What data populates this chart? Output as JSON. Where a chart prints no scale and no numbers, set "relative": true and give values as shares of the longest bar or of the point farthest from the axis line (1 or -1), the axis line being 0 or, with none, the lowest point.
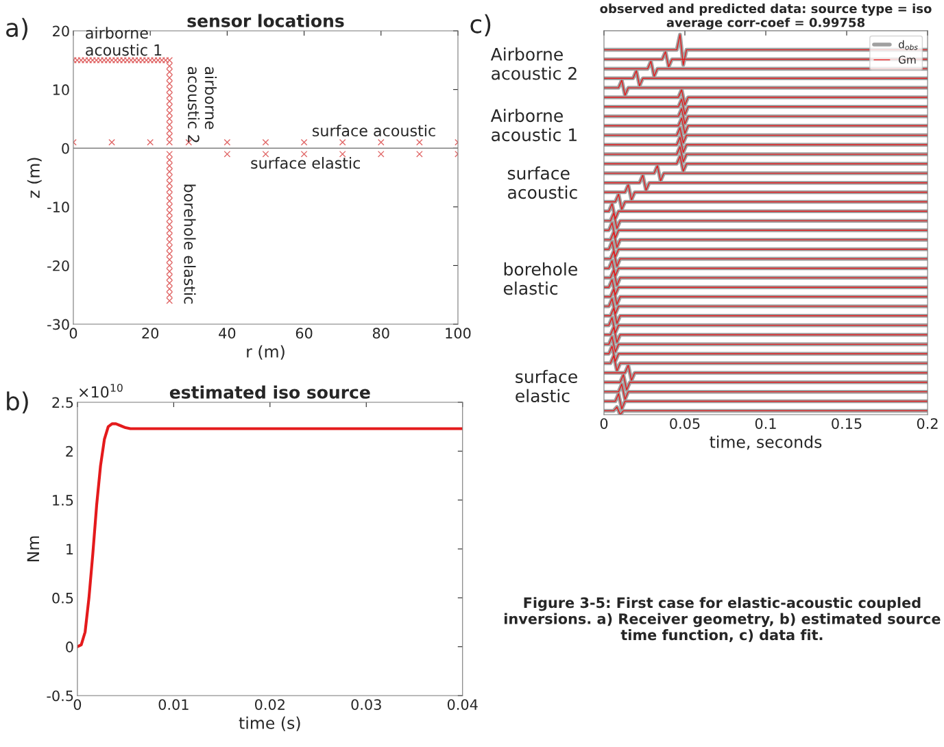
{
  "chart_data": [
    {
      "type": "scatter",
      "title": "sensor locations",
      "xlabel": "r (m)",
      "ylabel": "z (m)",
      "xlim": [
        0,
        100
      ],
      "ylim": [
        -30,
        20
      ],
      "xticks": [
        0,
        20,
        40,
        60,
        80,
        100
      ],
      "yticks": [
        -30,
        -20,
        -10,
        0,
        10,
        20
      ],
      "grid": false,
      "marker": "cross",
      "ref_lines": [
        {
          "axis": "y",
          "value": 0,
          "color": "#808080"
        }
      ],
      "series": [
        {
          "color": "#e06666",
          "x": [
            0,
            1,
            2,
            3,
            4,
            5,
            6,
            7,
            8,
            9,
            10,
            11,
            12,
            13,
            14,
            15,
            16,
            17,
            18,
            19,
            20,
            21,
            22,
            23,
            24,
            25,
            25,
            25,
            25,
            25,
            25,
            25,
            25,
            25,
            25,
            25,
            25,
            25,
            25,
            25,
            0,
            10,
            20,
            30,
            40,
            50,
            60,
            70,
            80,
            90,
            100,
            40,
            50,
            60,
            70,
            80,
            90,
            100,
            25,
            25,
            25,
            25,
            25,
            25,
            25,
            25,
            25,
            25,
            25,
            25,
            25,
            25,
            25,
            25,
            25,
            25,
            25,
            25,
            25,
            25,
            25,
            25,
            25,
            25
          ],
          "values": [
            15,
            15,
            15,
            15,
            15,
            15,
            15,
            15,
            15,
            15,
            15,
            15,
            15,
            15,
            15,
            15,
            15,
            15,
            15,
            15,
            15,
            15,
            15,
            15,
            15,
            15,
            14,
            13,
            12,
            11,
            10,
            9,
            8,
            7,
            6,
            5,
            4,
            3,
            2,
            1,
            1,
            1,
            1,
            1,
            1,
            1,
            1,
            1,
            1,
            1,
            1,
            -1,
            -1,
            -1,
            -1,
            -1,
            -1,
            -1,
            -1,
            -2,
            -3,
            -4,
            -5,
            -6,
            -7,
            -8,
            -9,
            -10,
            -11,
            -12,
            -13,
            -14,
            -15,
            -16,
            -17,
            -18,
            -19,
            -20,
            -21,
            -22,
            -23,
            -24,
            -25,
            -26
          ]
        }
      ],
      "annotations": [
        "airborne\nacoustic 1",
        "airborne\nacoustic 2",
        "surface acoustic",
        "surface elastic",
        "borehole elastic",
        "a)"
      ]
    },
    {
      "type": "line",
      "title": "estimated iso source",
      "xlabel": "time (s)",
      "ylabel": "Nm",
      "xlim": [
        0,
        0.04
      ],
      "ylim": [
        -0.5,
        2.5
      ],
      "xticks": [
        0,
        0.01,
        0.02,
        0.03,
        0.04
      ],
      "yticks": [
        -0.5,
        0,
        0.5,
        1,
        1.5,
        2,
        2.5
      ],
      "grid": false,
      "series": [
        {
          "color": "#e41a1c",
          "x": [
            0,
            0.0004,
            0.0008,
            0.0012,
            0.0016,
            0.002,
            0.0024,
            0.0028,
            0.0032,
            0.0036,
            0.004,
            0.0045,
            0.005,
            0.0055,
            0.006,
            0.01,
            0.02,
            0.03,
            0.04
          ],
          "values": [
            0,
            0.02,
            0.15,
            0.5,
            0.95,
            1.45,
            1.85,
            2.12,
            2.25,
            2.28,
            2.28,
            2.26,
            2.24,
            2.23,
            2.23,
            2.23,
            2.23,
            2.23,
            2.23
          ]
        }
      ],
      "annotations": [
        "×10$^{10}$",
        "b)"
      ]
    },
    {
      "type": "line",
      "title": "observed and predicted data: source type = iso",
      "subtitle": "average corr-coef = 0.99758",
      "xlabel": "time, seconds",
      "xlim": [
        0,
        0.2
      ],
      "xticks": [
        0,
        0.05,
        0.1,
        0.15,
        0.2
      ],
      "relative": true,
      "tick_labels": "x",
      "grid": false,
      "legend": "top right",
      "series": [
        {
          "name": "d$_{obs}$",
          "color": "#a0a0a0",
          "x": [
            0,
            0.045,
            0.047,
            0.049,
            0.051,
            0.2
          ],
          "values": [
            0.96,
            0.96,
            1.0,
            0.92,
            0.96,
            0.96
          ]
        },
        {
          "color": "#a0a0a0",
          "x": [
            0,
            0.036,
            0.038,
            0.04,
            0.042,
            0.2
          ],
          "values": [
            0.935,
            0.935,
            0.955,
            0.915,
            0.935,
            0.935
          ]
        },
        {
          "color": "#a0a0a0",
          "x": [
            0,
            0.027,
            0.029,
            0.031,
            0.033,
            0.2
          ],
          "values": [
            0.91,
            0.91,
            0.93,
            0.89,
            0.91,
            0.91
          ]
        },
        {
          "color": "#a0a0a0",
          "x": [
            0,
            0.018,
            0.02,
            0.022,
            0.024,
            0.2
          ],
          "values": [
            0.885,
            0.885,
            0.905,
            0.865,
            0.885,
            0.885
          ]
        },
        {
          "color": "#a0a0a0",
          "x": [
            0,
            0.009,
            0.011,
            0.013,
            0.015,
            0.2
          ],
          "values": [
            0.86,
            0.86,
            0.88,
            0.84,
            0.86,
            0.86
          ]
        },
        {
          "color": "#a0a0a0",
          "x": [
            0,
            0.046,
            0.048,
            0.05,
            0.052,
            0.2
          ],
          "values": [
            0.835,
            0.835,
            0.855,
            0.815,
            0.835,
            0.835
          ]
        },
        {
          "color": "#a0a0a0",
          "x": [
            0,
            0.046,
            0.048,
            0.05,
            0.052,
            0.2
          ],
          "values": [
            0.81,
            0.81,
            0.83,
            0.79,
            0.81,
            0.81
          ]
        },
        {
          "color": "#a0a0a0",
          "x": [
            0,
            0.046,
            0.048,
            0.05,
            0.052,
            0.2
          ],
          "values": [
            0.785,
            0.785,
            0.805,
            0.765,
            0.785,
            0.785
          ]
        },
        {
          "color": "#a0a0a0",
          "x": [
            0,
            0.046,
            0.048,
            0.05,
            0.052,
            0.2
          ],
          "values": [
            0.76,
            0.76,
            0.78,
            0.74,
            0.76,
            0.76
          ]
        },
        {
          "color": "#a0a0a0",
          "x": [
            0,
            0.045,
            0.047,
            0.049,
            0.051,
            0.2
          ],
          "values": [
            0.735,
            0.735,
            0.755,
            0.715,
            0.735,
            0.735
          ]
        },
        {
          "color": "#a0a0a0",
          "x": [
            0,
            0.045,
            0.047,
            0.049,
            0.051,
            0.2
          ],
          "values": [
            0.71,
            0.71,
            0.73,
            0.69,
            0.71,
            0.71
          ]
        },
        {
          "color": "#a0a0a0",
          "x": [
            0,
            0.045,
            0.047,
            0.049,
            0.051,
            0.2
          ],
          "values": [
            0.685,
            0.685,
            0.705,
            0.665,
            0.685,
            0.685
          ]
        },
        {
          "color": "#a0a0a0",
          "x": [
            0,
            0.045,
            0.047,
            0.049,
            0.051,
            0.2
          ],
          "values": [
            0.66,
            0.66,
            0.68,
            0.64,
            0.66,
            0.66
          ]
        },
        {
          "color": "#a0a0a0",
          "x": [
            0,
            0.031,
            0.033,
            0.035,
            0.037,
            0.2
          ],
          "values": [
            0.635,
            0.635,
            0.655,
            0.615,
            0.635,
            0.635
          ]
        },
        {
          "color": "#a0a0a0",
          "x": [
            0,
            0.022,
            0.024,
            0.026,
            0.028,
            0.2
          ],
          "values": [
            0.61,
            0.61,
            0.63,
            0.59,
            0.61,
            0.61
          ]
        },
        {
          "color": "#a0a0a0",
          "x": [
            0,
            0.013,
            0.015,
            0.017,
            0.019,
            0.2
          ],
          "values": [
            0.585,
            0.585,
            0.605,
            0.565,
            0.585,
            0.585
          ]
        },
        {
          "color": "#a0a0a0",
          "x": [
            0,
            0.007,
            0.009,
            0.011,
            0.013,
            0.2
          ],
          "values": [
            0.56,
            0.56,
            0.58,
            0.54,
            0.56,
            0.56
          ]
        },
        {
          "color": "#a0a0a0",
          "x": [
            0,
            0.003,
            0.005,
            0.007,
            0.009,
            0.2
          ],
          "values": [
            0.535,
            0.535,
            0.555,
            0.515,
            0.535,
            0.535
          ]
        },
        {
          "color": "#a0a0a0",
          "x": [
            0,
            0.004,
            0.006,
            0.008,
            0.01,
            0.2
          ],
          "values": [
            0.51,
            0.51,
            0.53,
            0.49,
            0.51,
            0.51
          ]
        },
        {
          "color": "#a0a0a0",
          "x": [
            0,
            0.003,
            0.005,
            0.007,
            0.009,
            0.2
          ],
          "values": [
            0.485,
            0.485,
            0.505,
            0.465,
            0.485,
            0.485
          ]
        },
        {
          "color": "#a0a0a0",
          "x": [
            0,
            0.004,
            0.006,
            0.008,
            0.01,
            0.2
          ],
          "values": [
            0.46,
            0.46,
            0.48,
            0.44,
            0.46,
            0.46
          ]
        },
        {
          "color": "#a0a0a0",
          "x": [
            0,
            0.003,
            0.005,
            0.007,
            0.009,
            0.2
          ],
          "values": [
            0.435,
            0.435,
            0.455,
            0.415,
            0.435,
            0.435
          ]
        },
        {
          "color": "#a0a0a0",
          "x": [
            0,
            0.004,
            0.006,
            0.008,
            0.01,
            0.2
          ],
          "values": [
            0.41,
            0.41,
            0.43,
            0.39,
            0.41,
            0.41
          ]
        },
        {
          "color": "#a0a0a0",
          "x": [
            0,
            0.003,
            0.005,
            0.007,
            0.009,
            0.2
          ],
          "values": [
            0.385,
            0.385,
            0.405,
            0.365,
            0.385,
            0.385
          ]
        },
        {
          "color": "#a0a0a0",
          "x": [
            0,
            0.004,
            0.006,
            0.008,
            0.01,
            0.2
          ],
          "values": [
            0.36,
            0.36,
            0.38,
            0.34,
            0.36,
            0.36
          ]
        },
        {
          "color": "#a0a0a0",
          "x": [
            0,
            0.003,
            0.005,
            0.007,
            0.009,
            0.2
          ],
          "values": [
            0.335,
            0.335,
            0.355,
            0.315,
            0.335,
            0.335
          ]
        },
        {
          "color": "#a0a0a0",
          "x": [
            0,
            0.004,
            0.006,
            0.008,
            0.01,
            0.2
          ],
          "values": [
            0.31,
            0.31,
            0.33,
            0.29,
            0.31,
            0.31
          ]
        },
        {
          "color": "#a0a0a0",
          "x": [
            0,
            0.003,
            0.005,
            0.007,
            0.009,
            0.2
          ],
          "values": [
            0.285,
            0.285,
            0.305,
            0.265,
            0.285,
            0.285
          ]
        },
        {
          "color": "#a0a0a0",
          "x": [
            0,
            0.004,
            0.006,
            0.008,
            0.01,
            0.2
          ],
          "values": [
            0.26,
            0.26,
            0.28,
            0.24,
            0.26,
            0.26
          ]
        },
        {
          "color": "#a0a0a0",
          "x": [
            0,
            0.003,
            0.005,
            0.007,
            0.009,
            0.2
          ],
          "values": [
            0.235,
            0.235,
            0.255,
            0.215,
            0.235,
            0.235
          ]
        },
        {
          "color": "#a0a0a0",
          "x": [
            0,
            0.004,
            0.006,
            0.008,
            0.01,
            0.2
          ],
          "values": [
            0.21,
            0.21,
            0.23,
            0.19,
            0.21,
            0.21
          ]
        },
        {
          "color": "#a0a0a0",
          "x": [
            0,
            0.003,
            0.005,
            0.007,
            0.009,
            0.2
          ],
          "values": [
            0.185,
            0.185,
            0.205,
            0.165,
            0.185,
            0.185
          ]
        },
        {
          "color": "#a0a0a0",
          "x": [
            0,
            0.003,
            0.005,
            0.007,
            0.009,
            0.2
          ],
          "values": [
            0.16,
            0.16,
            0.18,
            0.14,
            0.16,
            0.16
          ]
        },
        {
          "color": "#a0a0a0",
          "x": [
            0,
            0.004,
            0.006,
            0.008,
            0.01,
            0.2
          ],
          "values": [
            0.135,
            0.135,
            0.155,
            0.115,
            0.135,
            0.135
          ]
        },
        {
          "color": "#a0a0a0",
          "x": [
            0,
            0.013,
            0.015,
            0.017,
            0.019,
            0.2
          ],
          "values": [
            0.11,
            0.11,
            0.13,
            0.09,
            0.11,
            0.11
          ]
        },
        {
          "color": "#a0a0a0",
          "x": [
            0,
            0.01,
            0.012,
            0.014,
            0.016,
            0.2
          ],
          "values": [
            0.085,
            0.085,
            0.105,
            0.065,
            0.085,
            0.085
          ]
        },
        {
          "color": "#a0a0a0",
          "x": [
            0,
            0.009,
            0.011,
            0.013,
            0.015,
            0.2
          ],
          "values": [
            0.06,
            0.06,
            0.08,
            0.04,
            0.06,
            0.06
          ]
        },
        {
          "color": "#a0a0a0",
          "x": [
            0,
            0.007,
            0.009,
            0.011,
            0.013,
            0.2
          ],
          "values": [
            0.035,
            0.035,
            0.055,
            0.015,
            0.035,
            0.035
          ]
        },
        {
          "color": "#a0a0a0",
          "x": [
            0,
            0.006,
            0.008,
            0.01,
            0.012,
            0.2
          ],
          "values": [
            0.01,
            0.01,
            0.02,
            0.0,
            0.01,
            0.01
          ]
        },
        {
          "name": "Gm",
          "color": "#e41a1c",
          "x": [
            0,
            0.045,
            0.047,
            0.049,
            0.051,
            0.2
          ],
          "values": [
            0.96,
            0.96,
            1.0,
            0.92,
            0.96,
            0.96
          ]
        },
        {
          "color": "#e41a1c",
          "x": [
            0,
            0.036,
            0.038,
            0.04,
            0.042,
            0.2
          ],
          "values": [
            0.935,
            0.935,
            0.955,
            0.915,
            0.935,
            0.935
          ]
        },
        {
          "color": "#e41a1c",
          "x": [
            0,
            0.027,
            0.029,
            0.031,
            0.033,
            0.2
          ],
          "values": [
            0.91,
            0.91,
            0.93,
            0.89,
            0.91,
            0.91
          ]
        },
        {
          "color": "#e41a1c",
          "x": [
            0,
            0.018,
            0.02,
            0.022,
            0.024,
            0.2
          ],
          "values": [
            0.885,
            0.885,
            0.905,
            0.865,
            0.885,
            0.885
          ]
        },
        {
          "color": "#e41a1c",
          "x": [
            0,
            0.009,
            0.011,
            0.013,
            0.015,
            0.2
          ],
          "values": [
            0.86,
            0.86,
            0.88,
            0.84,
            0.86,
            0.86
          ]
        },
        {
          "color": "#e41a1c",
          "x": [
            0,
            0.046,
            0.048,
            0.05,
            0.052,
            0.2
          ],
          "values": [
            0.835,
            0.835,
            0.855,
            0.815,
            0.835,
            0.835
          ]
        },
        {
          "color": "#e41a1c",
          "x": [
            0,
            0.046,
            0.048,
            0.05,
            0.052,
            0.2
          ],
          "values": [
            0.81,
            0.81,
            0.83,
            0.79,
            0.81,
            0.81
          ]
        },
        {
          "color": "#e41a1c",
          "x": [
            0,
            0.046,
            0.048,
            0.05,
            0.052,
            0.2
          ],
          "values": [
            0.785,
            0.785,
            0.805,
            0.765,
            0.785,
            0.785
          ]
        },
        {
          "color": "#e41a1c",
          "x": [
            0,
            0.046,
            0.048,
            0.05,
            0.052,
            0.2
          ],
          "values": [
            0.76,
            0.76,
            0.78,
            0.74,
            0.76,
            0.76
          ]
        },
        {
          "color": "#e41a1c",
          "x": [
            0,
            0.045,
            0.047,
            0.049,
            0.051,
            0.2
          ],
          "values": [
            0.735,
            0.735,
            0.755,
            0.715,
            0.735,
            0.735
          ]
        },
        {
          "color": "#e41a1c",
          "x": [
            0,
            0.045,
            0.047,
            0.049,
            0.051,
            0.2
          ],
          "values": [
            0.71,
            0.71,
            0.73,
            0.69,
            0.71,
            0.71
          ]
        },
        {
          "color": "#e41a1c",
          "x": [
            0,
            0.045,
            0.047,
            0.049,
            0.051,
            0.2
          ],
          "values": [
            0.685,
            0.685,
            0.705,
            0.665,
            0.685,
            0.685
          ]
        },
        {
          "color": "#e41a1c",
          "x": [
            0,
            0.045,
            0.047,
            0.049,
            0.051,
            0.2
          ],
          "values": [
            0.66,
            0.66,
            0.68,
            0.64,
            0.66,
            0.66
          ]
        },
        {
          "color": "#e41a1c",
          "x": [
            0,
            0.031,
            0.033,
            0.035,
            0.037,
            0.2
          ],
          "values": [
            0.635,
            0.635,
            0.655,
            0.615,
            0.635,
            0.635
          ]
        },
        {
          "color": "#e41a1c",
          "x": [
            0,
            0.022,
            0.024,
            0.026,
            0.028,
            0.2
          ],
          "values": [
            0.61,
            0.61,
            0.63,
            0.59,
            0.61,
            0.61
          ]
        },
        {
          "color": "#e41a1c",
          "x": [
            0,
            0.013,
            0.015,
            0.017,
            0.019,
            0.2
          ],
          "values": [
            0.585,
            0.585,
            0.605,
            0.565,
            0.585,
            0.585
          ]
        },
        {
          "color": "#e41a1c",
          "x": [
            0,
            0.007,
            0.009,
            0.011,
            0.013,
            0.2
          ],
          "values": [
            0.56,
            0.56,
            0.58,
            0.54,
            0.56,
            0.56
          ]
        },
        {
          "color": "#e41a1c",
          "x": [
            0,
            0.003,
            0.005,
            0.007,
            0.009,
            0.2
          ],
          "values": [
            0.535,
            0.535,
            0.555,
            0.515,
            0.535,
            0.535
          ]
        },
        {
          "color": "#e41a1c",
          "x": [
            0,
            0.004,
            0.006,
            0.008,
            0.01,
            0.2
          ],
          "values": [
            0.51,
            0.51,
            0.53,
            0.49,
            0.51,
            0.51
          ]
        },
        {
          "color": "#e41a1c",
          "x": [
            0,
            0.003,
            0.005,
            0.007,
            0.009,
            0.2
          ],
          "values": [
            0.485,
            0.485,
            0.505,
            0.465,
            0.485,
            0.485
          ]
        },
        {
          "color": "#e41a1c",
          "x": [
            0,
            0.004,
            0.006,
            0.008,
            0.01,
            0.2
          ],
          "values": [
            0.46,
            0.46,
            0.48,
            0.44,
            0.46,
            0.46
          ]
        },
        {
          "color": "#e41a1c",
          "x": [
            0,
            0.003,
            0.005,
            0.007,
            0.009,
            0.2
          ],
          "values": [
            0.435,
            0.435,
            0.455,
            0.415,
            0.435,
            0.435
          ]
        },
        {
          "color": "#e41a1c",
          "x": [
            0,
            0.004,
            0.006,
            0.008,
            0.01,
            0.2
          ],
          "values": [
            0.41,
            0.41,
            0.43,
            0.39,
            0.41,
            0.41
          ]
        },
        {
          "color": "#e41a1c",
          "x": [
            0,
            0.003,
            0.005,
            0.007,
            0.009,
            0.2
          ],
          "values": [
            0.385,
            0.385,
            0.405,
            0.365,
            0.385,
            0.385
          ]
        },
        {
          "color": "#e41a1c",
          "x": [
            0,
            0.004,
            0.006,
            0.008,
            0.01,
            0.2
          ],
          "values": [
            0.36,
            0.36,
            0.38,
            0.34,
            0.36,
            0.36
          ]
        },
        {
          "color": "#e41a1c",
          "x": [
            0,
            0.003,
            0.005,
            0.007,
            0.009,
            0.2
          ],
          "values": [
            0.335,
            0.335,
            0.355,
            0.315,
            0.335,
            0.335
          ]
        },
        {
          "color": "#e41a1c",
          "x": [
            0,
            0.004,
            0.006,
            0.008,
            0.01,
            0.2
          ],
          "values": [
            0.31,
            0.31,
            0.33,
            0.29,
            0.31,
            0.31
          ]
        },
        {
          "color": "#e41a1c",
          "x": [
            0,
            0.003,
            0.005,
            0.007,
            0.009,
            0.2
          ],
          "values": [
            0.285,
            0.285,
            0.305,
            0.265,
            0.285,
            0.285
          ]
        },
        {
          "color": "#e41a1c",
          "x": [
            0,
            0.004,
            0.006,
            0.008,
            0.01,
            0.2
          ],
          "values": [
            0.26,
            0.26,
            0.28,
            0.24,
            0.26,
            0.26
          ]
        },
        {
          "color": "#e41a1c",
          "x": [
            0,
            0.003,
            0.005,
            0.007,
            0.009,
            0.2
          ],
          "values": [
            0.235,
            0.235,
            0.255,
            0.215,
            0.235,
            0.235
          ]
        },
        {
          "color": "#e41a1c",
          "x": [
            0,
            0.004,
            0.006,
            0.008,
            0.01,
            0.2
          ],
          "values": [
            0.21,
            0.21,
            0.23,
            0.19,
            0.21,
            0.21
          ]
        },
        {
          "color": "#e41a1c",
          "x": [
            0,
            0.003,
            0.005,
            0.007,
            0.009,
            0.2
          ],
          "values": [
            0.185,
            0.185,
            0.205,
            0.165,
            0.185,
            0.185
          ]
        },
        {
          "color": "#e41a1c",
          "x": [
            0,
            0.003,
            0.005,
            0.007,
            0.009,
            0.2
          ],
          "values": [
            0.16,
            0.16,
            0.18,
            0.14,
            0.16,
            0.16
          ]
        },
        {
          "color": "#e41a1c",
          "x": [
            0,
            0.004,
            0.006,
            0.008,
            0.01,
            0.2
          ],
          "values": [
            0.135,
            0.135,
            0.155,
            0.115,
            0.135,
            0.135
          ]
        },
        {
          "color": "#e41a1c",
          "x": [
            0,
            0.013,
            0.015,
            0.017,
            0.019,
            0.2
          ],
          "values": [
            0.11,
            0.11,
            0.13,
            0.09,
            0.11,
            0.11
          ]
        },
        {
          "color": "#e41a1c",
          "x": [
            0,
            0.01,
            0.012,
            0.014,
            0.016,
            0.2
          ],
          "values": [
            0.085,
            0.085,
            0.105,
            0.065,
            0.085,
            0.085
          ]
        },
        {
          "color": "#e41a1c",
          "x": [
            0,
            0.009,
            0.011,
            0.013,
            0.015,
            0.2
          ],
          "values": [
            0.06,
            0.06,
            0.08,
            0.04,
            0.06,
            0.06
          ]
        },
        {
          "color": "#e41a1c",
          "x": [
            0,
            0.007,
            0.009,
            0.011,
            0.013,
            0.2
          ],
          "values": [
            0.035,
            0.035,
            0.055,
            0.015,
            0.035,
            0.035
          ]
        },
        {
          "color": "#e41a1c",
          "x": [
            0,
            0.006,
            0.008,
            0.01,
            0.012,
            0.2
          ],
          "values": [
            0.01,
            0.01,
            0.02,
            0.0,
            0.01,
            0.01
          ]
        }
      ],
      "annotations": [
        "Airborne\nacoustic 2",
        "Airborne\nacoustic 1",
        "surface\nacoustic",
        "borehole\nelastic",
        "surface\nelastic",
        "c)",
        "Figure 3-5: First case for elastic-acoustic coupled inversions. a) Receiver geometry, b) estimated source time function, c) data fit."
      ]
    }
  ]
}
